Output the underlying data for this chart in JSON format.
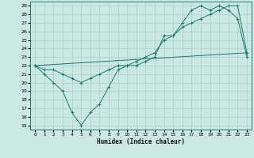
{
  "xlabel": "Humidex (Indice chaleur)",
  "background_color": "#cce8e4",
  "grid_color": "#aacfca",
  "line_color": "#1a7a6e",
  "xlim": [
    -0.5,
    23.5
  ],
  "ylim": [
    14.5,
    29.5
  ],
  "xticks": [
    0,
    1,
    2,
    3,
    4,
    5,
    6,
    7,
    8,
    9,
    10,
    11,
    12,
    13,
    14,
    15,
    16,
    17,
    18,
    19,
    20,
    21,
    22,
    23
  ],
  "yticks": [
    15,
    16,
    17,
    18,
    19,
    20,
    21,
    22,
    23,
    24,
    25,
    26,
    27,
    28,
    29
  ],
  "line1_x": [
    0,
    1,
    2,
    3,
    4,
    5,
    6,
    7,
    8,
    9,
    10,
    11,
    12,
    13,
    14,
    15,
    16,
    17,
    18,
    19,
    20,
    21,
    22,
    23
  ],
  "line1_y": [
    22,
    21,
    20,
    19,
    16.5,
    15,
    16.5,
    17.5,
    19.5,
    21.5,
    22,
    22,
    22.5,
    23,
    25.5,
    25.5,
    27,
    28.5,
    29,
    28.5,
    29,
    28.5,
    27.5,
    23
  ],
  "line2_x": [
    0,
    1,
    2,
    3,
    4,
    5,
    6,
    7,
    8,
    9,
    10,
    11,
    12,
    13,
    14,
    15,
    16,
    17,
    18,
    19,
    20,
    21,
    22,
    23
  ],
  "line2_y": [
    22,
    21.5,
    21.5,
    21,
    20.5,
    20,
    20.5,
    21,
    21.5,
    22,
    22,
    22.5,
    23,
    23.5,
    25,
    25.5,
    26.5,
    27,
    27.5,
    28,
    28.5,
    29,
    29,
    23.5
  ],
  "line3_x": [
    0,
    23
  ],
  "line3_y": [
    22,
    23.5
  ],
  "marker": "+"
}
